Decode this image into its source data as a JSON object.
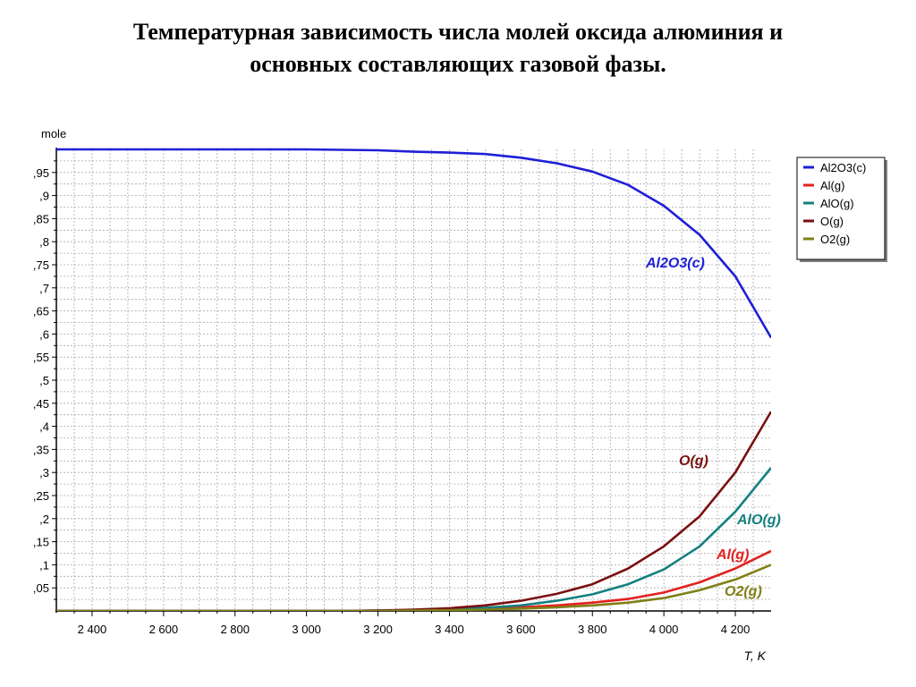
{
  "page": {
    "title_line1": "Температурная зависимость числа молей оксида алюминия и",
    "title_line2": "основных составляющих газовой фазы."
  },
  "chart_data": {
    "type": "line",
    "ylabel": "mole",
    "xlabel": "T, K",
    "xlim": [
      2300,
      4300
    ],
    "ylim": [
      0,
      1
    ],
    "x_ticks": [
      2400,
      2600,
      2800,
      3000,
      3200,
      3400,
      3600,
      3800,
      4000,
      4200
    ],
    "x_tick_labels": [
      "2 400",
      "2 600",
      "2 800",
      "3 000",
      "3 200",
      "3 400",
      "3 600",
      "3 800",
      "4 000",
      "4 200"
    ],
    "y_ticks": [
      0.05,
      0.1,
      0.15,
      0.2,
      0.25,
      0.3,
      0.35,
      0.4,
      0.45,
      0.5,
      0.55,
      0.6,
      0.65,
      0.7,
      0.75,
      0.8,
      0.85,
      0.9,
      0.95
    ],
    "y_tick_labels": [
      ",05",
      ",1",
      ",15",
      ",2",
      ",25",
      ",3",
      ",35",
      ",4",
      ",45",
      ",5",
      ",55",
      ",6",
      ",65",
      ",7",
      ",75",
      ",8",
      ",85",
      ",9",
      ",95"
    ],
    "grid": true,
    "legend_position": "right",
    "x": [
      2300,
      2400,
      2500,
      2600,
      2700,
      2800,
      2900,
      3000,
      3100,
      3200,
      3300,
      3400,
      3500,
      3600,
      3700,
      3800,
      3900,
      4000,
      4100,
      4200,
      4300
    ],
    "series": [
      {
        "name": "Al2O3(c)",
        "color": "#1f1fd6",
        "annotation": "Al2O3(c)",
        "values": [
          1.0,
          1.0,
          1.0,
          1.0,
          1.0,
          1.0,
          1.0,
          1.0,
          0.999,
          0.998,
          0.995,
          0.993,
          0.99,
          0.982,
          0.97,
          0.952,
          0.923,
          0.878,
          0.815,
          0.725,
          0.592
        ]
      },
      {
        "name": "Al(g)",
        "color": "#e32020",
        "annotation": "Al(g)",
        "values": [
          0,
          0,
          0,
          0,
          0,
          0,
          0,
          0,
          0,
          0.001,
          0.002,
          0.003,
          0.005,
          0.008,
          0.012,
          0.018,
          0.026,
          0.04,
          0.062,
          0.092,
          0.13
        ]
      },
      {
        "name": "AlO(g)",
        "color": "#138080",
        "annotation": "AlO(g)",
        "values": [
          0,
          0,
          0,
          0,
          0,
          0,
          0,
          0,
          0,
          0.001,
          0.002,
          0.004,
          0.007,
          0.012,
          0.022,
          0.036,
          0.058,
          0.09,
          0.14,
          0.215,
          0.31
        ]
      },
      {
        "name": "O(g)",
        "color": "#7a1010",
        "annotation": "O(g)",
        "values": [
          0,
          0,
          0,
          0,
          0,
          0,
          0,
          0,
          0,
          0.001,
          0.003,
          0.006,
          0.012,
          0.022,
          0.037,
          0.058,
          0.092,
          0.14,
          0.205,
          0.3,
          0.432
        ]
      },
      {
        "name": "O2(g)",
        "color": "#808018",
        "annotation": "O2(g)",
        "values": [
          0,
          0,
          0,
          0,
          0,
          0,
          0,
          0,
          0,
          0,
          0.001,
          0.002,
          0.003,
          0.005,
          0.008,
          0.012,
          0.018,
          0.028,
          0.045,
          0.068,
          0.1
        ]
      }
    ]
  }
}
